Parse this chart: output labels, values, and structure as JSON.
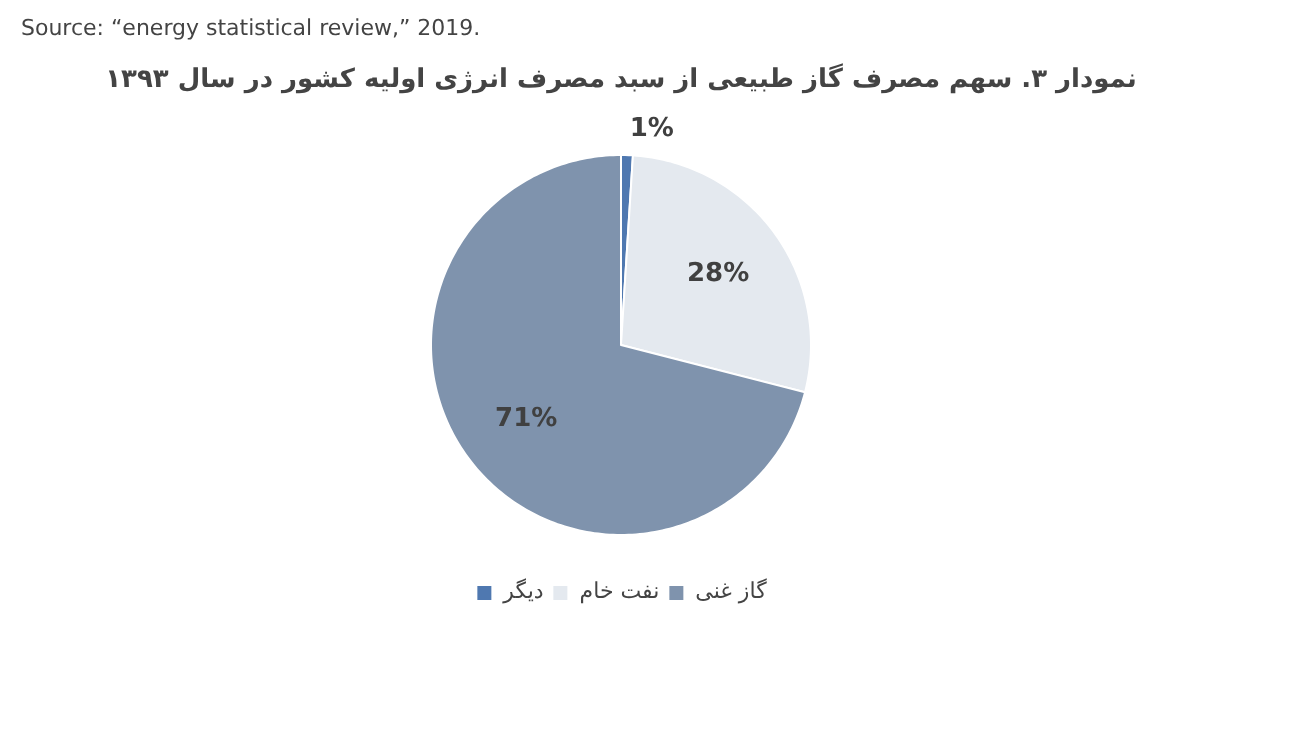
{
  "chart_data": {
    "type": "pie",
    "title": "نمودار ۳. سهم مصرف گاز طبیعی از سبد مصرف انرژی اولیه کشور در سال ۱۳۹۳",
    "annotations": [
      "Source: “energy statistical review,” 2019."
    ],
    "categories": [
      "گاز غنی",
      "نفت خام",
      "دیگر"
    ],
    "values": [
      71,
      28,
      1
    ],
    "colors": [
      "#7f93ad",
      "#e4e9ef",
      "#4f78b0"
    ],
    "value_labels": [
      "71%",
      "28%",
      "1%"
    ],
    "legend": "bottom"
  }
}
